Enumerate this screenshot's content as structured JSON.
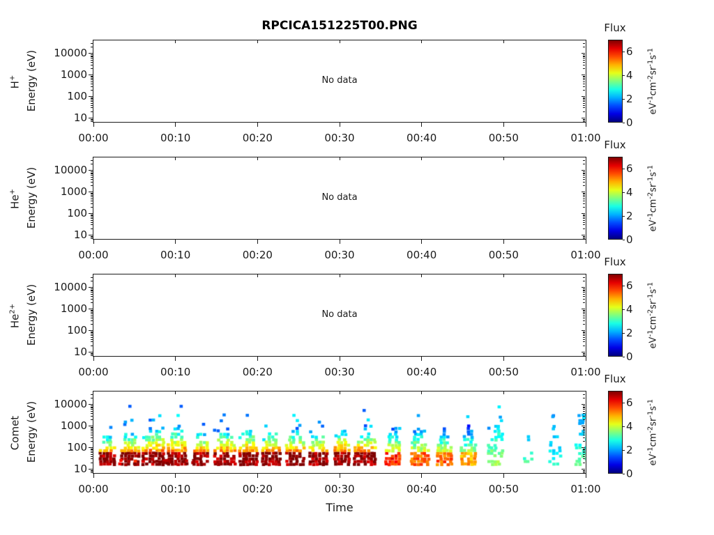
{
  "title": "RPCICA151225T00.PNG",
  "time_axis": {
    "label": "Time",
    "ticks": [
      {
        "m": 0,
        "label": "00:00"
      },
      {
        "m": 10,
        "label": "00:10"
      },
      {
        "m": 20,
        "label": "00:20"
      },
      {
        "m": 30,
        "label": "00:30"
      },
      {
        "m": 40,
        "label": "00:40"
      },
      {
        "m": 50,
        "label": "00:50"
      },
      {
        "m": 60,
        "label": "01:00"
      }
    ]
  },
  "energy_axis": {
    "label": "Energy (eV)",
    "log_min": 0.813,
    "log_max": 4.602,
    "major_ticks": [
      {
        "v": 10,
        "label": "10"
      },
      {
        "v": 100,
        "label": "100"
      },
      {
        "v": 1000,
        "label": "1000"
      },
      {
        "v": 10000,
        "label": "10000"
      }
    ]
  },
  "colorbar": {
    "title": "Flux",
    "range": [
      0,
      7
    ],
    "colormap": "jet",
    "top_color": "#800000",
    "bottom_color": "#000080",
    "ticks": [
      {
        "v": 0,
        "label": "0"
      },
      {
        "v": 2,
        "label": "2"
      },
      {
        "v": 4,
        "label": "4"
      },
      {
        "v": 6,
        "label": "6"
      }
    ],
    "units": [
      {
        "base": "eV",
        "sup": "-1"
      },
      {
        "base": "cm",
        "sup": "-2"
      },
      {
        "base": "sr",
        "sup": "-1"
      },
      {
        "base": "s",
        "sup": "-1"
      }
    ]
  },
  "panels": [
    {
      "id": "h-plus",
      "species": {
        "base": "H",
        "sup": "+"
      },
      "no_data": true,
      "no_data_label": "No data"
    },
    {
      "id": "he-plus",
      "species": {
        "base": "He",
        "sup": "+"
      },
      "no_data": true,
      "no_data_label": "No data"
    },
    {
      "id": "he-2plus",
      "species": {
        "base": "He",
        "sup": "2+"
      },
      "no_data": true,
      "no_data_label": "No data"
    },
    {
      "id": "comet",
      "species": {
        "base": "Comet",
        "sup": ""
      },
      "no_data": false,
      "no_data_label": ""
    }
  ],
  "chart_data": [
    {
      "panel": "H+",
      "type": "heatmap",
      "status": "No data",
      "x_range_minutes": [
        0,
        60
      ],
      "energy_range_ev": [
        6.5,
        40000
      ],
      "flux_range": [
        0,
        7
      ]
    },
    {
      "panel": "He+",
      "type": "heatmap",
      "status": "No data",
      "x_range_minutes": [
        0,
        60
      ],
      "energy_range_ev": [
        6.5,
        40000
      ],
      "flux_range": [
        0,
        7
      ]
    },
    {
      "panel": "He2+",
      "type": "heatmap",
      "status": "No data",
      "x_range_minutes": [
        0,
        60
      ],
      "energy_range_ev": [
        6.5,
        40000
      ],
      "flux_range": [
        0,
        7
      ]
    },
    {
      "panel": "Comet",
      "type": "heatmap",
      "x_range_minutes": [
        0,
        60
      ],
      "energy_range_ev": [
        6.5,
        40000
      ],
      "flux_range": [
        0,
        7
      ],
      "description": "Periodic cometary ion bursts every ~3 min; intense red band near 30-60 eV with yellow/green/cyan emission up to ~500-1000 eV; bursts weaken after 00:35 and become sparse cyan/green after 00:50.",
      "bursts": [
        {
          "t": 1.5,
          "w": 0.8,
          "etop": 400,
          "peak": 7
        },
        {
          "t": 4.3,
          "w": 1.0,
          "etop": 500,
          "peak": 7,
          "tail": true
        },
        {
          "t": 7.2,
          "w": 1.3,
          "etop": 700,
          "peak": 7,
          "tail": true
        },
        {
          "t": 10.1,
          "w": 1.1,
          "etop": 800,
          "peak": 7,
          "tail": true
        },
        {
          "t": 13.0,
          "w": 0.9,
          "etop": 500,
          "peak": 7
        },
        {
          "t": 15.8,
          "w": 1.2,
          "etop": 600,
          "peak": 7
        },
        {
          "t": 18.7,
          "w": 1.0,
          "etop": 700,
          "peak": 7
        },
        {
          "t": 21.5,
          "w": 1.0,
          "etop": 600,
          "peak": 7
        },
        {
          "t": 24.4,
          "w": 1.0,
          "etop": 600,
          "peak": 7
        },
        {
          "t": 27.2,
          "w": 1.0,
          "etop": 500,
          "peak": 7
        },
        {
          "t": 30.2,
          "w": 0.9,
          "etop": 700,
          "peak": 7
        },
        {
          "t": 33.0,
          "w": 1.3,
          "etop": 600,
          "peak": 7
        },
        {
          "t": 36.4,
          "w": 0.9,
          "etop": 600,
          "peak": 6
        },
        {
          "t": 39.6,
          "w": 1.0,
          "etop": 800,
          "peak": 5.5
        },
        {
          "t": 42.6,
          "w": 0.8,
          "etop": 600,
          "peak": 5.5
        },
        {
          "t": 45.6,
          "w": 0.9,
          "etop": 700,
          "peak": 5
        },
        {
          "t": 48.9,
          "w": 0.9,
          "etop": 1500,
          "peak": 4,
          "sparse": true
        },
        {
          "t": 52.9,
          "w": 0.5,
          "etop": 300,
          "peak": 3.5,
          "sparse": true
        },
        {
          "t": 56.1,
          "w": 0.6,
          "etop": 2000,
          "peak": 3,
          "sparse": true
        },
        {
          "t": 59.4,
          "w": 0.7,
          "etop": 2500,
          "peak": 3.5,
          "sparse": true
        }
      ],
      "isolated_points": [
        {
          "t": 3.7,
          "e": 1300,
          "flux": 2
        },
        {
          "t": 4.25,
          "e": 7000,
          "flux": 1.5
        },
        {
          "t": 10.5,
          "e": 7000,
          "flux": 1.5
        },
        {
          "t": 32.8,
          "e": 4500,
          "flux": 1.5
        },
        {
          "t": 49.4,
          "e": 2200,
          "flux": 2
        },
        {
          "t": 55.8,
          "e": 2300,
          "flux": 2
        },
        {
          "t": 59.0,
          "e": 2600,
          "flux": 2
        }
      ]
    }
  ]
}
